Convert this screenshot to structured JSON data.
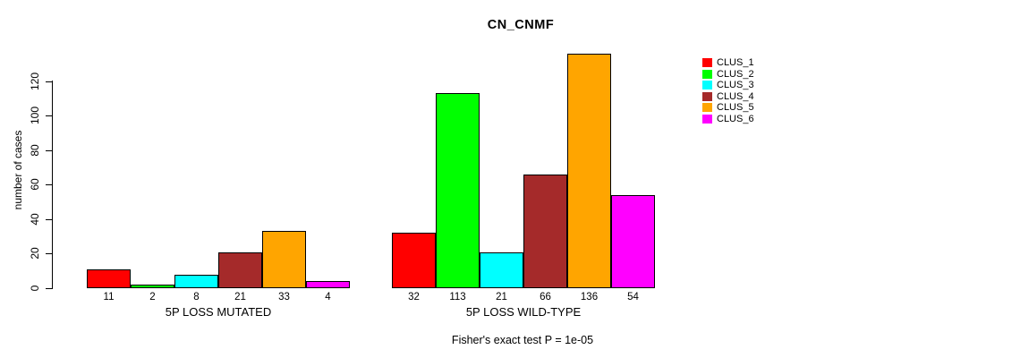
{
  "chart_data": {
    "type": "bar",
    "title": "CN_CNMF",
    "ylabel": "number of cases",
    "yticks": [
      0,
      20,
      40,
      60,
      80,
      100,
      120
    ],
    "ylim": [
      0,
      140
    ],
    "grid": false,
    "legend_position": "right",
    "series": [
      {
        "name": "CLUS_1",
        "color": "#FF0000"
      },
      {
        "name": "CLUS_2",
        "color": "#00FF00"
      },
      {
        "name": "CLUS_3",
        "color": "#00FFFF"
      },
      {
        "name": "CLUS_4",
        "color": "#A52A2A"
      },
      {
        "name": "CLUS_5",
        "color": "#FFA500"
      },
      {
        "name": "CLUS_6",
        "color": "#FF00FF"
      }
    ],
    "groups": [
      {
        "label": "5P LOSS MUTATED",
        "values": [
          11,
          2,
          8,
          21,
          33,
          4
        ]
      },
      {
        "label": "5P LOSS WILD-TYPE",
        "values": [
          32,
          113,
          21,
          66,
          136,
          54
        ]
      }
    ],
    "footer": "Fisher's exact test P = 1e-05"
  }
}
